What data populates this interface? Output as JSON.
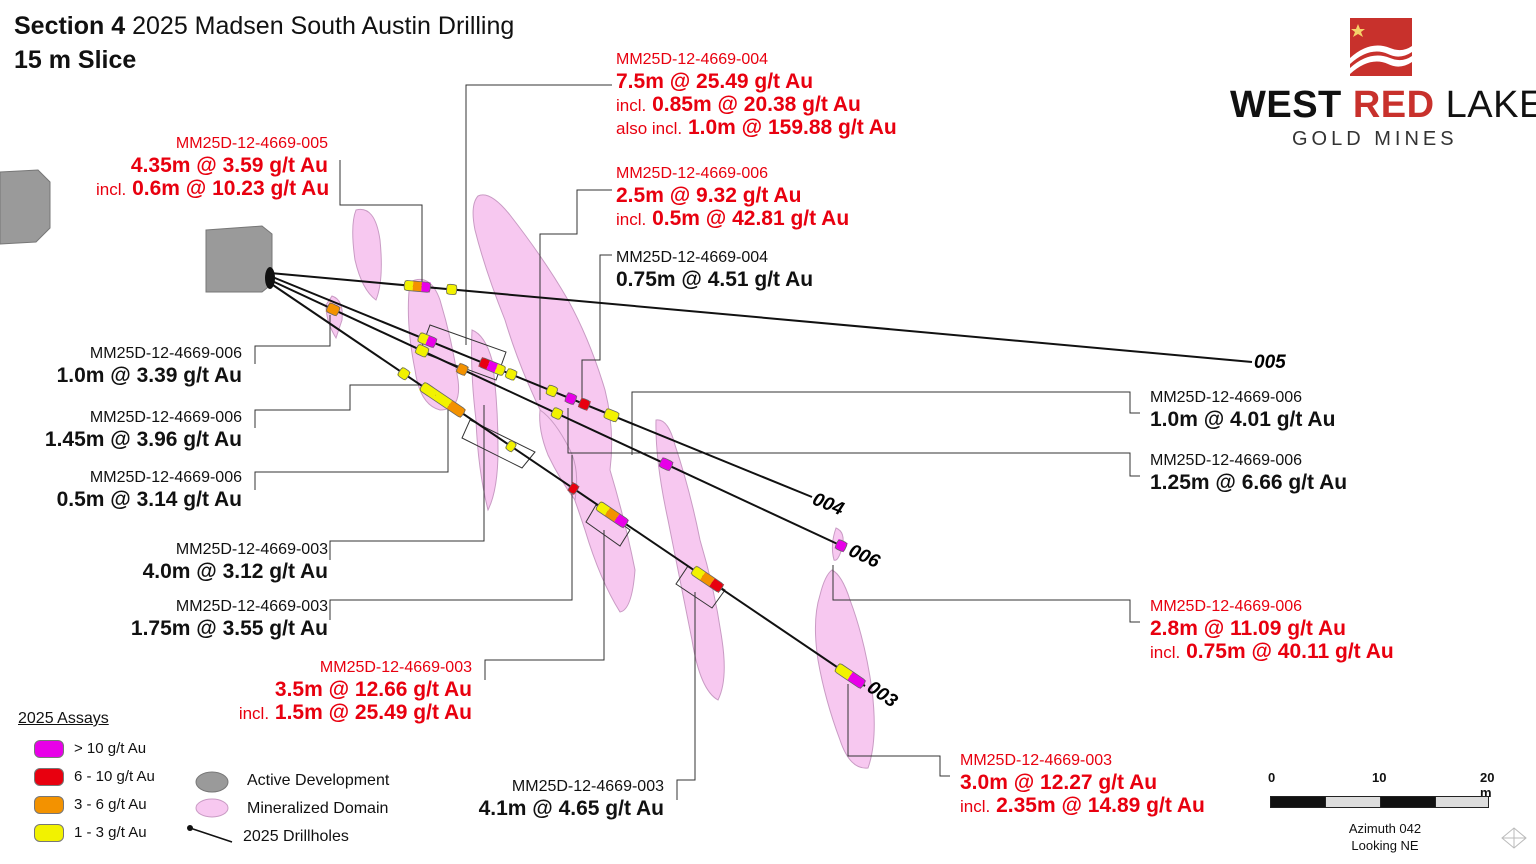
{
  "header": {
    "section_label": "Section 4",
    "title": "2025 Madsen South Austin Drilling",
    "subtitle": "15 m Slice"
  },
  "logo": {
    "word1": "WEST",
    "word2": "RED",
    "word3": "LAKE",
    "tagline": "GOLD MINES"
  },
  "callouts": {
    "c1": {
      "hole": "MM25D-12-4669-004",
      "main": "7.5m @ 25.49 g/t Au",
      "inc1_prefix": "incl.",
      "inc1": "0.85m @ 20.38 g/t Au",
      "inc2_prefix": "also incl.",
      "inc2": "1.0m @ 159.88 g/t Au"
    },
    "c2": {
      "hole": "MM25D-12-4669-005",
      "main": "4.35m @ 3.59 g/t Au",
      "inc1_prefix": "incl.",
      "inc1": "0.6m @ 10.23 g/t Au"
    },
    "c3": {
      "hole": "MM25D-12-4669-006",
      "main": "2.5m @ 9.32 g/t Au",
      "inc1_prefix": "incl.",
      "inc1": "0.5m @ 42.81 g/t Au"
    },
    "c4": {
      "hole": "MM25D-12-4669-004",
      "main": "0.75m @ 4.51 g/t Au"
    },
    "c5": {
      "hole": "MM25D-12-4669-006",
      "main": "1.0m @ 3.39 g/t Au"
    },
    "c6": {
      "hole": "MM25D-12-4669-006",
      "main": "1.45m @ 3.96 g/t Au"
    },
    "c7": {
      "hole": "MM25D-12-4669-006",
      "main": "0.5m @ 3.14 g/t Au"
    },
    "c8": {
      "hole": "MM25D-12-4669-003",
      "main": "4.0m @ 3.12 g/t Au"
    },
    "c9": {
      "hole": "MM25D-12-4669-003",
      "main": "1.75m @ 3.55 g/t Au"
    },
    "c10": {
      "hole": "MM25D-12-4669-003",
      "main": "3.5m @ 12.66 g/t Au",
      "inc1_prefix": "incl.",
      "inc1": "1.5m @ 25.49 g/t Au"
    },
    "c11": {
      "hole": "MM25D-12-4669-003",
      "main": "4.1m @ 4.65 g/t Au"
    },
    "c12": {
      "hole": "MM25D-12-4669-006",
      "main": "1.0m @ 4.01 g/t Au"
    },
    "c13": {
      "hole": "MM25D-12-4669-006",
      "main": "1.25m @ 6.66 g/t Au"
    },
    "c14": {
      "hole": "MM25D-12-4669-006",
      "main": "2.8m @ 11.09 g/t Au",
      "inc1_prefix": "incl.",
      "inc1": "0.75m @ 40.11 g/t Au"
    },
    "c15": {
      "hole": "MM25D-12-4669-003",
      "main": "3.0m @ 12.27 g/t Au",
      "inc1_prefix": "incl.",
      "inc1": "2.35m @ 14.89 g/t Au"
    }
  },
  "drillholes": {
    "h005": "005",
    "h004": "004",
    "h006": "006",
    "h003": "003"
  },
  "legend": {
    "title": "2025 Assays",
    "assay_classes": [
      {
        "label": "> 10 g/t Au",
        "color": "#e800e8"
      },
      {
        "label": "6 - 10 g/t Au",
        "color": "#e8000f"
      },
      {
        "label": "3 - 6 g/t Au",
        "color": "#f39200"
      },
      {
        "label": "1 - 3 g/t Au",
        "color": "#f2f200"
      }
    ],
    "active_development": "Active Development",
    "mineralized_domain": "Mineralized Domain",
    "drillholes": "2025 Drillholes"
  },
  "scale": {
    "t0": "0",
    "t10": "10",
    "t20": "20 m"
  },
  "orientation": {
    "azimuth": "Azimuth 042",
    "looking": "Looking NE"
  },
  "colors": {
    "domain_fill": "#f7c8f0",
    "domain_stroke": "#c99bc4",
    "development": "#9a9a9a",
    "label_red": "#e8000f"
  }
}
